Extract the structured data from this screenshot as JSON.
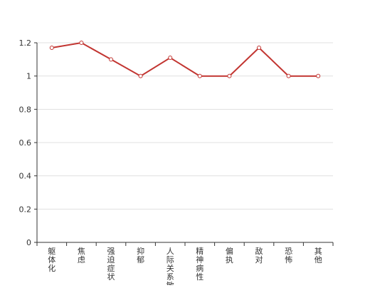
{
  "chart_data": {
    "type": "line",
    "title": "",
    "xlabel": "",
    "ylabel": "",
    "categories": [
      "躯体化",
      "焦虑",
      "强迫症状",
      "抑郁",
      "人际关系敏感",
      "精神病性",
      "偏执",
      "敌对",
      "恐怖",
      "其他"
    ],
    "series": [
      {
        "values": [
          1.17,
          1.2,
          1.1,
          1.0,
          1.11,
          1.0,
          1.0,
          1.17,
          1.0,
          1.0
        ],
        "color": "#c23531"
      }
    ],
    "ylim": [
      0,
      1.2
    ],
    "yticks": [
      "0",
      "0.2",
      "0.4",
      "0.6",
      "0.8",
      "1",
      "1.2"
    ],
    "grid": true,
    "legend": "none"
  }
}
